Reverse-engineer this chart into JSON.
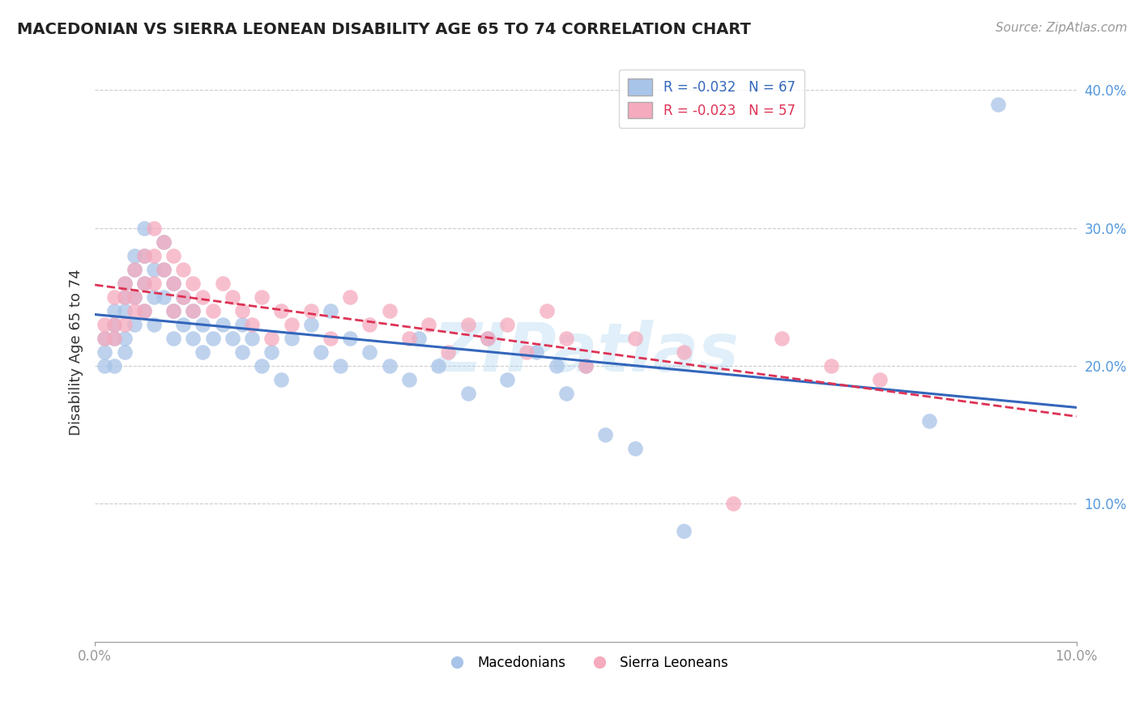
{
  "title": "MACEDONIAN VS SIERRA LEONEAN DISABILITY AGE 65 TO 74 CORRELATION CHART",
  "source": "Source: ZipAtlas.com",
  "ylabel": "Disability Age 65 to 74",
  "xlim": [
    0.0,
    0.1
  ],
  "ylim": [
    0.0,
    0.42
  ],
  "legend_macedonian": "R = -0.032   N = 67",
  "legend_sierra": "R = -0.023   N = 57",
  "macedonian_color": "#a8c4e8",
  "sierra_color": "#f5aabe",
  "trend_macedonian_color": "#3366bb",
  "trend_sierra_color": "#dd3355",
  "axis_label_color": "#5599dd",
  "watermark": "ZIPatlas",
  "background_color": "#ffffff",
  "grid_color": "#cccccc",
  "mac_x": [
    0.001,
    0.001,
    0.001,
    0.002,
    0.002,
    0.002,
    0.002,
    0.003,
    0.003,
    0.003,
    0.003,
    0.003,
    0.004,
    0.004,
    0.004,
    0.004,
    0.005,
    0.005,
    0.005,
    0.005,
    0.006,
    0.006,
    0.006,
    0.007,
    0.007,
    0.007,
    0.008,
    0.008,
    0.008,
    0.009,
    0.009,
    0.01,
    0.01,
    0.011,
    0.011,
    0.012,
    0.013,
    0.014,
    0.015,
    0.015,
    0.016,
    0.017,
    0.018,
    0.019,
    0.02,
    0.022,
    0.023,
    0.024,
    0.025,
    0.026,
    0.028,
    0.03,
    0.032,
    0.033,
    0.035,
    0.038,
    0.04,
    0.042,
    0.045,
    0.047,
    0.048,
    0.05,
    0.052,
    0.055,
    0.06,
    0.085,
    0.092
  ],
  "mac_y": [
    0.22,
    0.21,
    0.2,
    0.24,
    0.23,
    0.22,
    0.2,
    0.26,
    0.25,
    0.24,
    0.22,
    0.21,
    0.28,
    0.27,
    0.25,
    0.23,
    0.3,
    0.28,
    0.26,
    0.24,
    0.27,
    0.25,
    0.23,
    0.29,
    0.27,
    0.25,
    0.26,
    0.24,
    0.22,
    0.25,
    0.23,
    0.24,
    0.22,
    0.23,
    0.21,
    0.22,
    0.23,
    0.22,
    0.23,
    0.21,
    0.22,
    0.2,
    0.21,
    0.19,
    0.22,
    0.23,
    0.21,
    0.24,
    0.2,
    0.22,
    0.21,
    0.2,
    0.19,
    0.22,
    0.2,
    0.18,
    0.22,
    0.19,
    0.21,
    0.2,
    0.18,
    0.2,
    0.15,
    0.14,
    0.08,
    0.16,
    0.39
  ],
  "sl_x": [
    0.001,
    0.001,
    0.002,
    0.002,
    0.002,
    0.003,
    0.003,
    0.003,
    0.004,
    0.004,
    0.004,
    0.005,
    0.005,
    0.005,
    0.006,
    0.006,
    0.006,
    0.007,
    0.007,
    0.008,
    0.008,
    0.008,
    0.009,
    0.009,
    0.01,
    0.01,
    0.011,
    0.012,
    0.013,
    0.014,
    0.015,
    0.016,
    0.017,
    0.018,
    0.019,
    0.02,
    0.022,
    0.024,
    0.026,
    0.028,
    0.03,
    0.032,
    0.034,
    0.036,
    0.038,
    0.04,
    0.042,
    0.044,
    0.046,
    0.048,
    0.05,
    0.055,
    0.06,
    0.065,
    0.07,
    0.075,
    0.08
  ],
  "sl_y": [
    0.23,
    0.22,
    0.25,
    0.23,
    0.22,
    0.26,
    0.25,
    0.23,
    0.27,
    0.25,
    0.24,
    0.28,
    0.26,
    0.24,
    0.3,
    0.28,
    0.26,
    0.29,
    0.27,
    0.28,
    0.26,
    0.24,
    0.27,
    0.25,
    0.26,
    0.24,
    0.25,
    0.24,
    0.26,
    0.25,
    0.24,
    0.23,
    0.25,
    0.22,
    0.24,
    0.23,
    0.24,
    0.22,
    0.25,
    0.23,
    0.24,
    0.22,
    0.23,
    0.21,
    0.23,
    0.22,
    0.23,
    0.21,
    0.24,
    0.22,
    0.2,
    0.22,
    0.21,
    0.1,
    0.22,
    0.2,
    0.19
  ]
}
